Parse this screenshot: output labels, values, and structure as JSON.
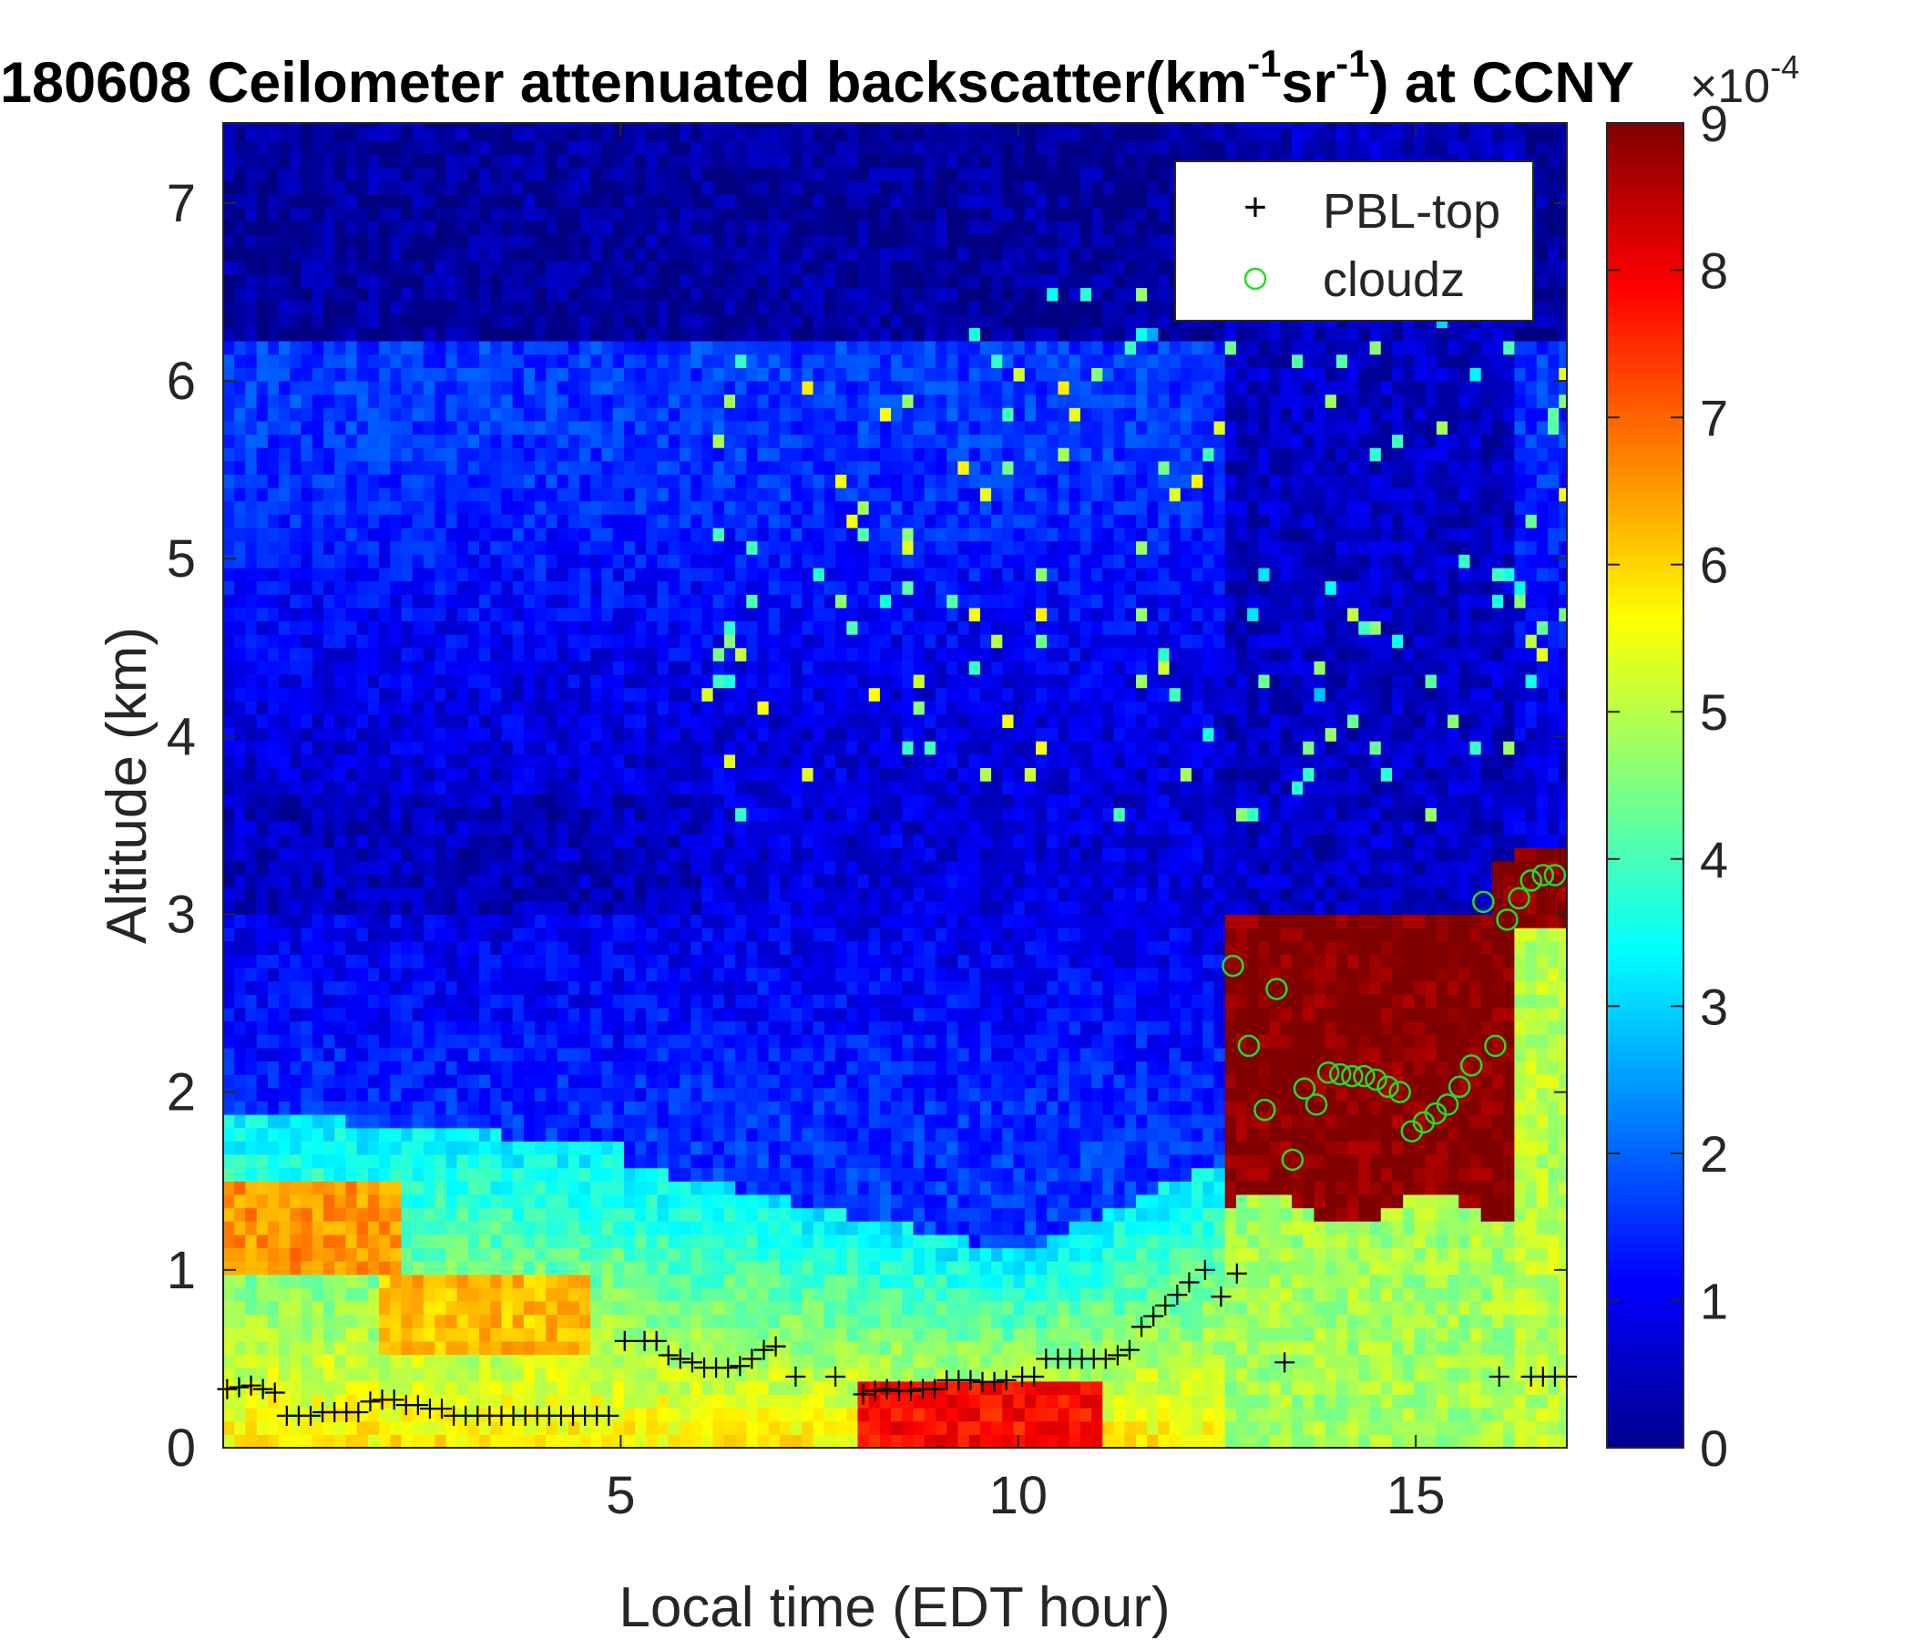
{
  "chart_data": {
    "type": "heatmap",
    "title": {
      "prefix": "180608 Ceilometer attenuated backscatter(km",
      "sup1": "-1",
      "mid": "sr",
      "sup2": "-1",
      "suffix": ") at CCNY"
    },
    "xlabel": "Local time (EDT hour)",
    "ylabel": "Altitude (km)",
    "xlim": [
      0,
      16.9
    ],
    "ylim": [
      0,
      7.45
    ],
    "xticks": [
      "5",
      "10",
      "15"
    ],
    "xtick_values": [
      5,
      10,
      15
    ],
    "yticks": [
      "0",
      "1",
      "2",
      "3",
      "4",
      "5",
      "6",
      "7"
    ],
    "ytick_values": [
      0,
      1,
      2,
      3,
      4,
      5,
      6,
      7
    ],
    "colorbar": {
      "clim": [
        0,
        9
      ],
      "ticks": [
        "0",
        "1",
        "2",
        "3",
        "4",
        "5",
        "6",
        "7",
        "8",
        "9"
      ],
      "multiplier": "×10",
      "multiplier_exp": "-4",
      "colormap": "jet"
    },
    "grid": false,
    "legend_position": "top-right",
    "legend": [
      {
        "name": "PBL-top",
        "marker": "+",
        "color": "#000000"
      },
      {
        "name": "cloudz",
        "marker": "o",
        "color": "#22dd22"
      }
    ],
    "series": [
      {
        "name": "PBL-top",
        "x": [
          0.05,
          0.2,
          0.35,
          0.5,
          0.65,
          0.8,
          0.95,
          1.1,
          1.25,
          1.4,
          1.55,
          1.7,
          1.85,
          2.0,
          2.15,
          2.3,
          2.45,
          2.6,
          2.75,
          2.9,
          3.05,
          3.2,
          3.35,
          3.5,
          3.65,
          3.8,
          3.95,
          4.1,
          4.25,
          4.4,
          4.55,
          4.7,
          4.85,
          5.05,
          5.3,
          5.45,
          5.6,
          5.75,
          5.9,
          6.05,
          6.2,
          6.35,
          6.5,
          6.65,
          6.8,
          6.95,
          7.2,
          7.7,
          8.05,
          8.2,
          8.35,
          8.5,
          8.65,
          8.8,
          8.95,
          9.1,
          9.25,
          9.4,
          9.55,
          9.7,
          9.85,
          10.05,
          10.2,
          10.35,
          10.5,
          10.65,
          10.8,
          10.95,
          11.1,
          11.25,
          11.4,
          11.55,
          11.7,
          11.85,
          12.0,
          12.15,
          12.35,
          12.55,
          12.75,
          13.35,
          16.05,
          16.45,
          16.6,
          16.75,
          16.9
        ],
        "y": [
          0.33,
          0.34,
          0.35,
          0.33,
          0.31,
          0.18,
          0.18,
          0.18,
          0.2,
          0.2,
          0.2,
          0.2,
          0.26,
          0.27,
          0.27,
          0.24,
          0.24,
          0.22,
          0.22,
          0.18,
          0.18,
          0.18,
          0.18,
          0.18,
          0.18,
          0.18,
          0.18,
          0.18,
          0.18,
          0.18,
          0.18,
          0.18,
          0.18,
          0.6,
          0.6,
          0.6,
          0.52,
          0.5,
          0.48,
          0.45,
          0.45,
          0.45,
          0.46,
          0.5,
          0.55,
          0.57,
          0.4,
          0.4,
          0.3,
          0.32,
          0.33,
          0.32,
          0.32,
          0.33,
          0.33,
          0.38,
          0.38,
          0.38,
          0.37,
          0.37,
          0.38,
          0.4,
          0.4,
          0.5,
          0.5,
          0.5,
          0.5,
          0.5,
          0.5,
          0.52,
          0.55,
          0.68,
          0.74,
          0.8,
          0.86,
          0.93,
          1.0,
          0.85,
          0.98,
          0.48,
          0.4,
          0.4,
          0.4,
          0.4,
          0.4
        ]
      },
      {
        "name": "cloudz",
        "x": [
          12.7,
          12.9,
          13.1,
          13.25,
          13.45,
          13.6,
          13.75,
          13.9,
          14.05,
          14.2,
          14.35,
          14.5,
          14.65,
          14.8,
          14.95,
          15.1,
          15.25,
          15.4,
          15.55,
          15.7,
          15.85,
          16.0,
          16.15,
          16.3,
          16.45,
          16.6,
          16.75
        ],
        "y": [
          2.71,
          2.26,
          1.9,
          2.58,
          1.62,
          2.02,
          1.93,
          2.11,
          2.1,
          2.09,
          2.09,
          2.07,
          2.03,
          2.0,
          1.78,
          1.83,
          1.88,
          1.93,
          2.03,
          2.15,
          3.07,
          2.26,
          2.97,
          3.09,
          3.19,
          3.22,
          3.22
        ]
      }
    ]
  }
}
